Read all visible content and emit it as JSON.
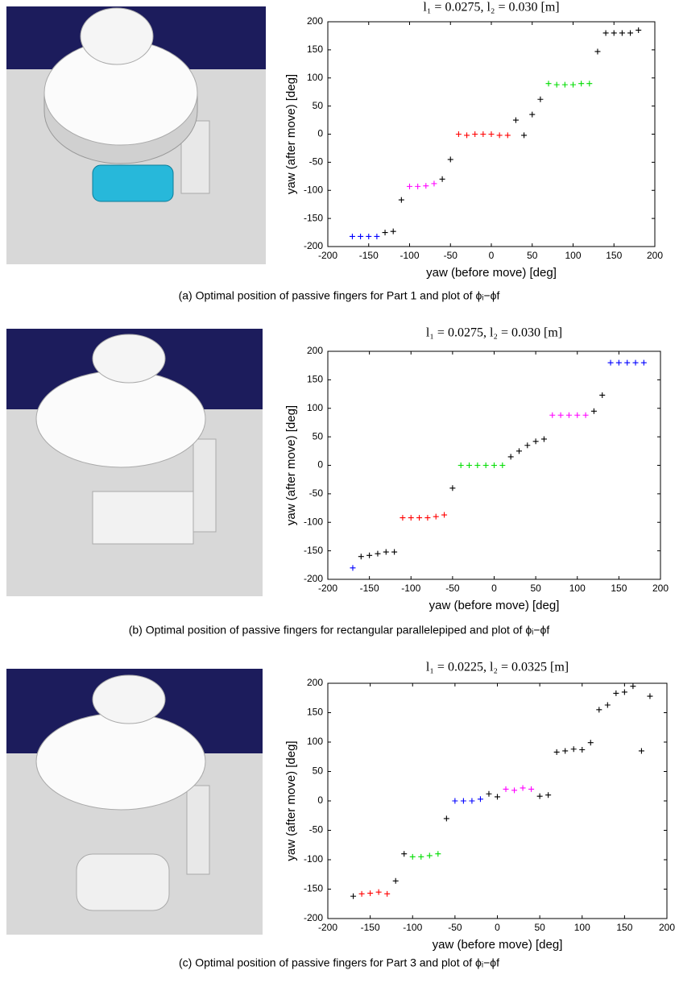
{
  "chart_data": [
    {
      "type": "scatter",
      "title": "l₁ = 0.0275, l₂ = 0.030 [m]",
      "xlabel": "yaw (before move) [deg]",
      "ylabel": "yaw (after move) [deg]",
      "caption": "(a) Optimal position of passive fingers for Part 1 and plot of ϕᵢ−ϕf",
      "xlim": [
        -200,
        200
      ],
      "ylim": [
        -200,
        200
      ],
      "xticks": [
        -200,
        -150,
        -100,
        -50,
        0,
        50,
        100,
        150,
        200
      ],
      "yticks": [
        -200,
        -150,
        -100,
        -50,
        0,
        50,
        100,
        150,
        200
      ],
      "series": [
        {
          "color": "#0000ff",
          "x": [
            -170,
            -160,
            -150,
            -140
          ],
          "values": [
            -182,
            -182,
            -182,
            -182
          ]
        },
        {
          "color": "#000000",
          "x": [
            -130,
            -120,
            -110,
            -60,
            -50,
            30,
            40,
            50,
            60,
            130,
            140,
            150,
            160,
            170,
            180
          ],
          "values": [
            -175,
            -173,
            -117,
            -80,
            -45,
            25,
            -2,
            35,
            62,
            147,
            180,
            180,
            180,
            180,
            185
          ]
        },
        {
          "color": "#ff00ff",
          "x": [
            -100,
            -90,
            -80,
            -70
          ],
          "values": [
            -93,
            -93,
            -92,
            -88
          ]
        },
        {
          "color": "#ff0000",
          "x": [
            -40,
            -30,
            -20,
            -10,
            0,
            10,
            20
          ],
          "values": [
            0,
            -2,
            0,
            0,
            0,
            -2,
            -2
          ]
        },
        {
          "color": "#00dd00",
          "x": [
            70,
            80,
            90,
            100,
            110,
            120
          ],
          "values": [
            90,
            88,
            88,
            88,
            90,
            90
          ]
        }
      ]
    },
    {
      "type": "scatter",
      "title": "l₁ = 0.0275, l₂ = 0.030 [m]",
      "xlabel": "yaw (before move) [deg]",
      "ylabel": "yaw (after move) [deg]",
      "caption": "(b) Optimal position of passive fingers for rectangular parallelepiped and plot of ϕᵢ−ϕf",
      "xlim": [
        -200,
        200
      ],
      "ylim": [
        -200,
        200
      ],
      "xticks": [
        -200,
        -150,
        -100,
        -50,
        0,
        50,
        100,
        150,
        200
      ],
      "yticks": [
        -200,
        -150,
        -100,
        -50,
        0,
        50,
        100,
        150,
        200
      ],
      "series": [
        {
          "color": "#0000ff",
          "x": [
            -170,
            140,
            150,
            160,
            170,
            180
          ],
          "values": [
            -180,
            180,
            180,
            180,
            180,
            180
          ]
        },
        {
          "color": "#000000",
          "x": [
            -160,
            -150,
            -140,
            -130,
            -120,
            -50,
            20,
            30,
            40,
            50,
            60,
            120,
            130
          ],
          "values": [
            -160,
            -158,
            -155,
            -152,
            -152,
            -40,
            15,
            25,
            35,
            42,
            46,
            95,
            123
          ]
        },
        {
          "color": "#ff0000",
          "x": [
            -110,
            -100,
            -90,
            -80,
            -70,
            -60
          ],
          "values": [
            -92,
            -92,
            -92,
            -92,
            -90,
            -87
          ]
        },
        {
          "color": "#00dd00",
          "x": [
            -40,
            -30,
            -20,
            -10,
            0,
            10
          ],
          "values": [
            0,
            0,
            0,
            0,
            0,
            0
          ]
        },
        {
          "color": "#ff00ff",
          "x": [
            70,
            80,
            90,
            100,
            110
          ],
          "values": [
            88,
            88,
            88,
            88,
            88
          ]
        }
      ]
    },
    {
      "type": "scatter",
      "title": "l₁ = 0.0225, l₂ = 0.0325 [m]",
      "xlabel": "yaw (before move) [deg]",
      "ylabel": "yaw (after move) [deg]",
      "caption": "(c) Optimal position of passive fingers for Part 3 and plot of ϕᵢ−ϕf",
      "xlim": [
        -200,
        200
      ],
      "ylim": [
        -200,
        200
      ],
      "xticks": [
        -200,
        -150,
        -100,
        -50,
        0,
        50,
        100,
        150,
        200
      ],
      "yticks": [
        -200,
        -150,
        -100,
        -50,
        0,
        50,
        100,
        150,
        200
      ],
      "series": [
        {
          "color": "#000000",
          "x": [
            -170,
            -120,
            -110,
            -60,
            -10,
            0,
            50,
            60,
            70,
            80,
            90,
            100,
            110,
            120,
            130,
            140,
            150,
            160,
            170,
            180
          ],
          "values": [
            -162,
            -136,
            -90,
            -30,
            12,
            7,
            8,
            10,
            83,
            85,
            88,
            87,
            99,
            155,
            163,
            183,
            185,
            195,
            85,
            178
          ]
        },
        {
          "color": "#ff0000",
          "x": [
            -160,
            -150,
            -140,
            -130
          ],
          "values": [
            -158,
            -157,
            -155,
            -158
          ]
        },
        {
          "color": "#00dd00",
          "x": [
            -100,
            -90,
            -80,
            -70
          ],
          "values": [
            -95,
            -95,
            -93,
            -90
          ]
        },
        {
          "color": "#0000ff",
          "x": [
            -50,
            -40,
            -30,
            -20
          ],
          "values": [
            0,
            0,
            0,
            3
          ]
        },
        {
          "color": "#ff00ff",
          "x": [
            10,
            20,
            30,
            40
          ],
          "values": [
            20,
            18,
            22,
            20
          ]
        }
      ]
    }
  ]
}
